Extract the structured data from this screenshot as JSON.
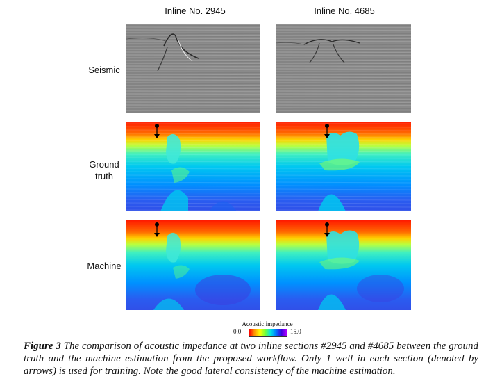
{
  "columns": [
    {
      "title": "Inline No. 2945"
    },
    {
      "title": "Inline No. 4685"
    }
  ],
  "rows": [
    {
      "label": "Seismic"
    },
    {
      "label": "Ground\ntruth"
    },
    {
      "label": "Machine"
    }
  ],
  "colorbar": {
    "title": "Acoustic impedance",
    "min": "0.0",
    "max": "15.0",
    "colors": [
      "#ff0000",
      "#ff9a00",
      "#ffff00",
      "#6fff3a",
      "#00e5e5",
      "#0077ff",
      "#3a00e0",
      "#b000ff"
    ]
  },
  "caption": {
    "label": "Figure 3",
    "text": " The comparison of acoustic impedance at two inline sections #2945 and #4685 between the ground truth and the machine estimation from the proposed workflow. Only 1 well in each section (denoted by arrows) is used for training. Note the good lateral consistency of the machine estimation."
  }
}
